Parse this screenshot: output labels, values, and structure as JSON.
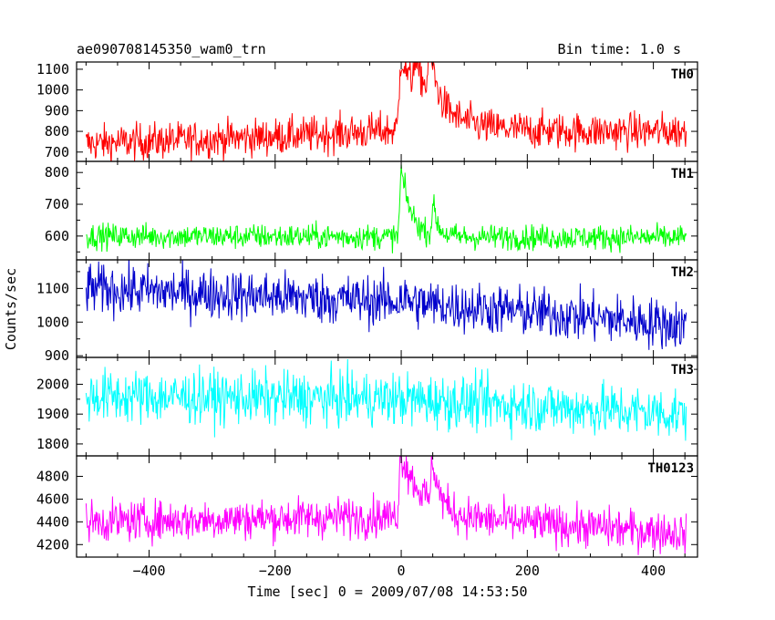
{
  "header": {
    "title": "ae090708145350_wam0_trn",
    "bin_time": "Bin time: 1.0 s"
  },
  "chart_data": {
    "type": "line",
    "xlabel": "Time [sec] 0 = 2009/07/08 14:53:50",
    "ylabel": "Counts/sec",
    "xlim": [
      -515,
      470
    ],
    "xticks": [
      -400,
      -200,
      0,
      200,
      400
    ],
    "xtick_labels": [
      "−400",
      "−200",
      "0",
      "200",
      "400"
    ],
    "bin_time_s": 1.0,
    "panels": [
      {
        "name": "TH0",
        "color": "#ff0000",
        "ylim": [
          655,
          1135
        ],
        "yticks": [
          700,
          800,
          900,
          1000,
          1100
        ],
        "yticks_labeled": [
          700,
          800,
          900,
          1000,
          1100
        ],
        "x_range": [
          -500,
          452
        ],
        "baseline": [
          [
            -500,
            740
          ],
          [
            -200,
            775
          ],
          [
            -100,
            790
          ],
          [
            -10,
            805
          ],
          [
            100,
            805
          ],
          [
            300,
            800
          ],
          [
            452,
            800
          ]
        ],
        "noise": 45,
        "flares": [
          [
            0,
            1090,
            4,
            40
          ],
          [
            45,
            980,
            3,
            10
          ],
          [
            20,
            870,
            2,
            40
          ]
        ]
      },
      {
        "name": "TH1",
        "color": "#00ff00",
        "ylim": [
          525,
          835
        ],
        "yticks": [
          550,
          600,
          650,
          700,
          750,
          800
        ],
        "yticks_labeled": [
          600,
          700,
          800
        ],
        "x_range": [
          -500,
          452
        ],
        "baseline": [
          [
            -500,
            600
          ],
          [
            452,
            595
          ]
        ],
        "noise": 20,
        "flares": [
          [
            0,
            810,
            3,
            16
          ],
          [
            50,
            700,
            2,
            8
          ]
        ]
      },
      {
        "name": "TH2",
        "color": "#0000cc",
        "ylim": [
          895,
          1185
        ],
        "yticks": [
          900,
          950,
          1000,
          1050,
          1100,
          1150
        ],
        "yticks_labeled": [
          900,
          1000,
          1100
        ],
        "x_range": [
          -500,
          452
        ],
        "baseline": [
          [
            -500,
            1100
          ],
          [
            0,
            1060
          ],
          [
            200,
            1030
          ],
          [
            452,
            990
          ]
        ],
        "noise": 38,
        "flares": [
          [
            0,
            1120,
            2,
            8
          ]
        ]
      },
      {
        "name": "TH3",
        "color": "#00ffff",
        "ylim": [
          1760,
          2090
        ],
        "yticks": [
          1800,
          1850,
          1900,
          1950,
          2000,
          2050
        ],
        "yticks_labeled": [
          1800,
          1900,
          2000
        ],
        "x_range": [
          -500,
          452
        ],
        "baseline": [
          [
            -500,
            1960
          ],
          [
            0,
            1950
          ],
          [
            452,
            1900
          ]
        ],
        "noise": 45,
        "flares": []
      },
      {
        "name": "TH0123",
        "color": "#ff00ff",
        "ylim": [
          4090,
          4980
        ],
        "yticks": [
          4200,
          4400,
          4600,
          4800
        ],
        "yticks_labeled": [
          4200,
          4400,
          4600,
          4800
        ],
        "x_range": [
          -500,
          452
        ],
        "baseline": [
          [
            -500,
            4400
          ],
          [
            0,
            4450
          ],
          [
            200,
            4390
          ],
          [
            452,
            4300
          ]
        ],
        "noise": 90,
        "flares": [
          [
            0,
            4950,
            4,
            35
          ],
          [
            50,
            4800,
            3,
            10
          ]
        ]
      }
    ]
  }
}
